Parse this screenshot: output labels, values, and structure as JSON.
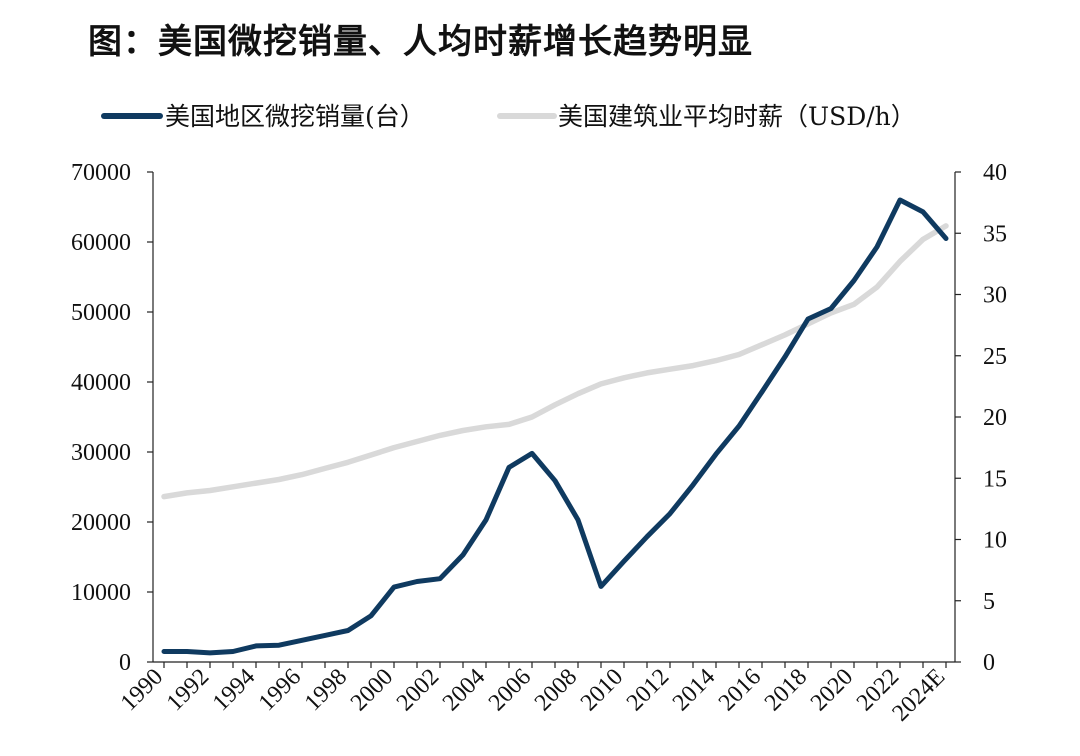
{
  "title": "图：美国微挖销量、人均时薪增长趋势明显",
  "chart_data": {
    "type": "line",
    "title": "图：美国微挖销量、人均时薪增长趋势明显",
    "categories": [
      "1990",
      "1991",
      "1992",
      "1993",
      "1994",
      "1995",
      "1996",
      "1997",
      "1998",
      "1999",
      "2000",
      "2001",
      "2002",
      "2003",
      "2004",
      "2005",
      "2006",
      "2007",
      "2008",
      "2009",
      "2010",
      "2011",
      "2012",
      "2013",
      "2014",
      "2015",
      "2016",
      "2017",
      "2018",
      "2019",
      "2020",
      "2021",
      "2022",
      "2023",
      "2024E"
    ],
    "x_tick_labels": [
      "1990",
      "1992",
      "1994",
      "1996",
      "1998",
      "2000",
      "2002",
      "2004",
      "2006",
      "2008",
      "2010",
      "2012",
      "2014",
      "2016",
      "2018",
      "2020",
      "2022",
      "2024E"
    ],
    "legend_position": "top",
    "grid": false,
    "y_left": {
      "ylim": [
        0,
        70000
      ],
      "ticks": [
        "0",
        "10000",
        "20000",
        "30000",
        "40000",
        "50000",
        "60000",
        "70000"
      ]
    },
    "y_right": {
      "ylim": [
        0,
        40
      ],
      "ticks": [
        "0",
        "5",
        "10",
        "15",
        "20",
        "25",
        "30",
        "35",
        "40"
      ]
    },
    "series": [
      {
        "name": "美国地区微挖销量(台）",
        "axis": "left",
        "color": "#0f3a60",
        "values": [
          1500,
          1500,
          1300,
          1500,
          2300,
          2400,
          3100,
          3800,
          4500,
          6600,
          10700,
          11500,
          11900,
          15300,
          20300,
          27800,
          29800,
          25900,
          20300,
          10800,
          14400,
          17900,
          21200,
          25300,
          29700,
          33700,
          38600,
          43600,
          49000,
          50500,
          54500,
          59300,
          66000,
          64300,
          60500
        ]
      },
      {
        "name": "美国建筑业平均时薪（USD/h）",
        "axis": "right",
        "color": "#d9d9d9",
        "values": [
          13.5,
          13.8,
          14.0,
          14.3,
          14.6,
          14.9,
          15.3,
          15.8,
          16.3,
          16.9,
          17.5,
          18.0,
          18.5,
          18.9,
          19.2,
          19.4,
          20.0,
          21.0,
          21.9,
          22.7,
          23.2,
          23.6,
          23.9,
          24.2,
          24.6,
          25.1,
          25.9,
          26.7,
          27.6,
          28.5,
          29.2,
          30.6,
          32.7,
          34.5,
          35.6
        ]
      }
    ]
  }
}
